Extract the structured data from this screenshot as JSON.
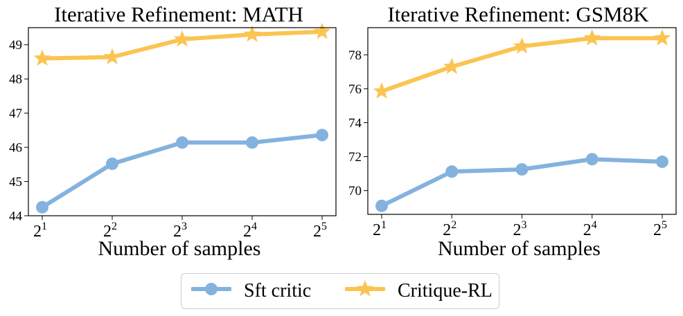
{
  "legend": {
    "series": [
      {
        "name": "Sft critic",
        "color": "#84b2de",
        "marker": "circle"
      },
      {
        "name": "Critique-RL",
        "color": "#fbc452",
        "marker": "star"
      }
    ]
  },
  "chart_data": [
    {
      "type": "line",
      "title": "Iterative Refinement: MATH",
      "xlabel": "Number of samples",
      "ylabel": "",
      "categories": [
        "2^1",
        "2^2",
        "2^3",
        "2^4",
        "2^5"
      ],
      "x_ticks": [
        {
          "base": "2",
          "exp": "1"
        },
        {
          "base": "2",
          "exp": "2"
        },
        {
          "base": "2",
          "exp": "3"
        },
        {
          "base": "2",
          "exp": "4"
        },
        {
          "base": "2",
          "exp": "5"
        }
      ],
      "ylim": [
        44.0,
        49.5
      ],
      "yticks": [
        44,
        45,
        46,
        47,
        48,
        49
      ],
      "series": [
        {
          "name": "Sft critic",
          "values": [
            44.25,
            45.52,
            46.14,
            46.14,
            46.36
          ]
        },
        {
          "name": "Critique-RL",
          "values": [
            48.6,
            48.64,
            49.16,
            49.3,
            49.38
          ]
        }
      ]
    },
    {
      "type": "line",
      "title": "Iterative Refinement: GSM8K",
      "xlabel": "Number of samples",
      "ylabel": "",
      "categories": [
        "2^1",
        "2^2",
        "2^3",
        "2^4",
        "2^5"
      ],
      "x_ticks": [
        {
          "base": "2",
          "exp": "1"
        },
        {
          "base": "2",
          "exp": "2"
        },
        {
          "base": "2",
          "exp": "3"
        },
        {
          "base": "2",
          "exp": "4"
        },
        {
          "base": "2",
          "exp": "5"
        }
      ],
      "ylim": [
        68.6,
        79.6
      ],
      "yticks": [
        70,
        72,
        74,
        76,
        78
      ],
      "series": [
        {
          "name": "Sft critic",
          "values": [
            69.1,
            71.12,
            71.25,
            71.85,
            71.7
          ]
        },
        {
          "name": "Critique-RL",
          "values": [
            75.85,
            77.3,
            78.5,
            78.98,
            78.98
          ]
        }
      ]
    }
  ]
}
